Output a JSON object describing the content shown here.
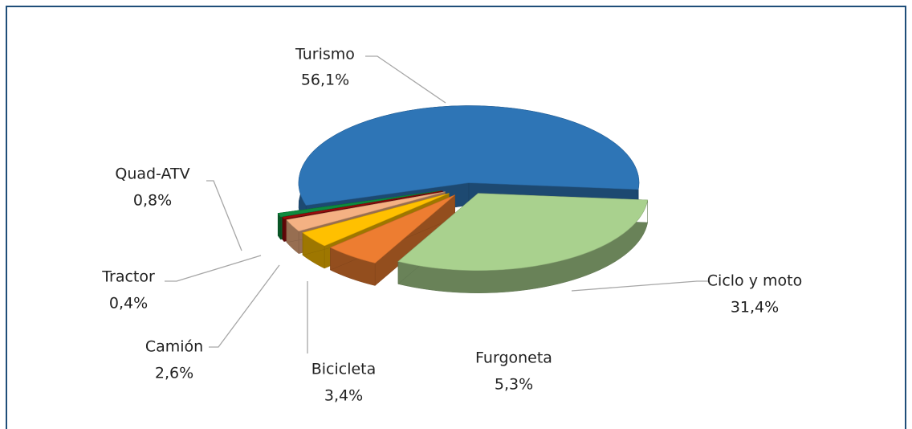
{
  "chart_data": {
    "type": "pie",
    "categories": [
      "Turismo",
      "Ciclo y moto",
      "Furgoneta",
      "Bicicleta",
      "Camión",
      "Tractor",
      "Quad-ATV"
    ],
    "values": [
      56.1,
      31.4,
      5.3,
      3.4,
      2.6,
      0.4,
      0.8
    ],
    "value_labels": [
      "56,1%",
      "31,4%",
      "5,3%",
      "3,4%",
      "2,6%",
      "0,4%",
      "0,8%"
    ],
    "colors": [
      "#2e75b6",
      "#a9d18e",
      "#ed7d31",
      "#ffc000",
      "#f4b183",
      "#9b0d0d",
      "#0e8a3e"
    ]
  }
}
